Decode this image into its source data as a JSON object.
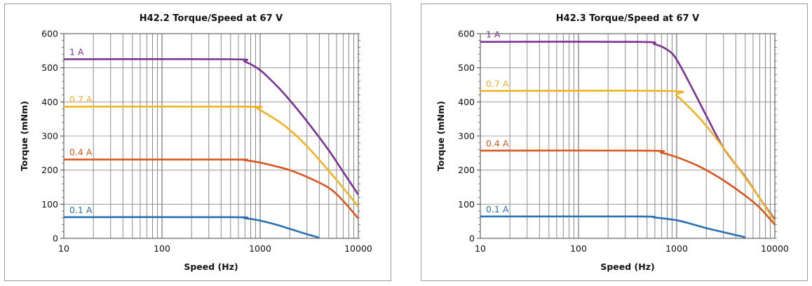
{
  "chart_data": [
    {
      "type": "line",
      "title": "H42.2 Torque/Speed at 67 V",
      "xlabel": "Speed (Hz)",
      "ylabel": "Torque (mNm)",
      "xscale": "log",
      "xlim": [
        10,
        10000
      ],
      "ylim": [
        0,
        600
      ],
      "xticks": [
        "10",
        "100",
        "1000",
        "10000"
      ],
      "yticks": [
        "0",
        "100",
        "200",
        "300",
        "400",
        "500",
        "600"
      ],
      "grid": true,
      "series": [
        {
          "name": "1 A",
          "color": "#7b3294",
          "x": [
            10,
            500,
            700,
            1000,
            1500,
            2000,
            3000,
            5000,
            7000,
            10000
          ],
          "y": [
            525,
            525,
            518,
            493,
            445,
            405,
            343,
            258,
            195,
            128
          ]
        },
        {
          "name": "0.7 A",
          "color": "#f0b323",
          "x": [
            10,
            700,
            900,
            1000,
            1500,
            2000,
            3000,
            5000,
            7000,
            10000
          ],
          "y": [
            386,
            386,
            383,
            376,
            345,
            318,
            270,
            198,
            148,
            93
          ]
        },
        {
          "name": "0.4 A",
          "color": "#d9561e",
          "x": [
            10,
            500,
            700,
            1000,
            1500,
            2000,
            3000,
            5000,
            7000,
            10000
          ],
          "y": [
            231,
            231,
            229,
            222,
            210,
            200,
            180,
            148,
            110,
            58
          ]
        },
        {
          "name": "0.1 A",
          "color": "#2a6fb0",
          "x": [
            10,
            500,
            700,
            1000,
            1500,
            2000,
            3000,
            4000
          ],
          "y": [
            62,
            62,
            59,
            52,
            39,
            28,
            12,
            2
          ]
        }
      ]
    },
    {
      "type": "line",
      "title": "H42.3 Torque/Speed at 67 V",
      "xlabel": "Speed (Hz)",
      "ylabel": "Torque (mNm)",
      "xscale": "log",
      "xlim": [
        10,
        10000
      ],
      "ylim": [
        0,
        600
      ],
      "xticks": [
        "10",
        "100",
        "1000",
        "10000"
      ],
      "yticks": [
        "0",
        "100",
        "200",
        "300",
        "400",
        "500",
        "600"
      ],
      "grid": true,
      "series": [
        {
          "name": "1 A",
          "color": "#7b3294",
          "x": [
            10,
            400,
            600,
            800,
            1000,
            1500,
            2000,
            3000,
            5000,
            7000,
            10000
          ],
          "y": [
            576,
            576,
            569,
            553,
            524,
            430,
            360,
            265,
            180,
            118,
            55
          ]
        },
        {
          "name": "0.7 A",
          "color": "#f0b323",
          "x": [
            10,
            800,
            1000,
            1500,
            2000,
            3000,
            5000,
            7000,
            10000
          ],
          "y": [
            432,
            432,
            418,
            370,
            330,
            265,
            178,
            118,
            50
          ]
        },
        {
          "name": "0.4 A",
          "color": "#d9561e",
          "x": [
            10,
            500,
            700,
            1000,
            1500,
            2000,
            3000,
            5000,
            7000,
            10000
          ],
          "y": [
            257,
            257,
            251,
            238,
            218,
            200,
            170,
            125,
            90,
            40
          ]
        },
        {
          "name": "0.1 A",
          "color": "#2a6fb0",
          "x": [
            10,
            400,
            600,
            1000,
            1500,
            2000,
            3000,
            5000
          ],
          "y": [
            64,
            64,
            61,
            53,
            40,
            30,
            18,
            3
          ]
        }
      ]
    }
  ]
}
